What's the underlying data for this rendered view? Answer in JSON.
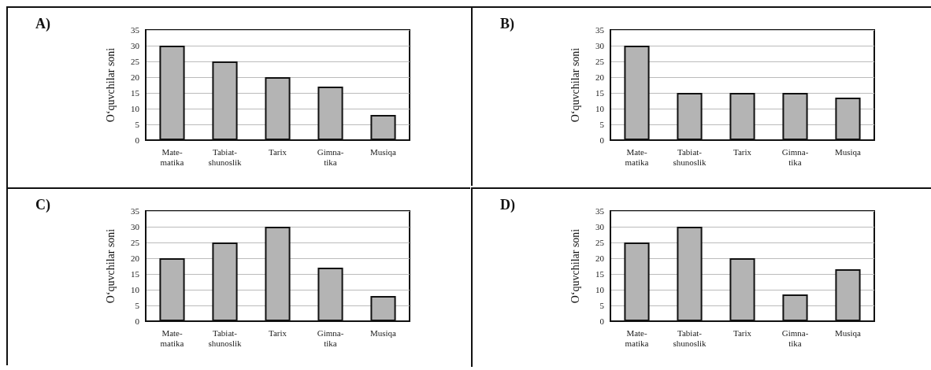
{
  "chart_data": [
    {
      "type": "bar",
      "title": "A)",
      "ylabel": "O‘quvchilar soni",
      "categories": [
        "Mate-\nmatika",
        "Tabiat-\nshunoslik",
        "Tarix",
        "Gimna-\ntika",
        "Musiqa"
      ],
      "values": [
        30,
        25,
        20,
        17,
        8
      ],
      "color": "#b4b4b4",
      "ylim": [
        0,
        35
      ],
      "yticks": [
        0,
        5,
        10,
        15,
        20,
        25,
        30,
        35
      ],
      "grid": "y"
    },
    {
      "type": "bar",
      "title": "B)",
      "ylabel": "O‘quvchilar soni",
      "categories": [
        "Mate-\nmatika",
        "Tabiat-\nshunoslik",
        "Tarix",
        "Gimna-\ntika",
        "Musiqa"
      ],
      "values": [
        30,
        15,
        15,
        15,
        13.5
      ],
      "color": "#b4b4b4",
      "ylim": [
        0,
        35
      ],
      "yticks": [
        0,
        5,
        10,
        15,
        20,
        25,
        30,
        35
      ],
      "grid": "y"
    },
    {
      "type": "bar",
      "title": "C)",
      "ylabel": "O‘quvchilar soni",
      "categories": [
        "Mate-\nmatika",
        "Tabiat-\nshunoslik",
        "Tarix",
        "Gimna-\ntika",
        "Musiqa"
      ],
      "values": [
        20,
        25,
        30,
        17,
        8
      ],
      "color": "#b4b4b4",
      "ylim": [
        0,
        35
      ],
      "yticks": [
        0,
        5,
        10,
        15,
        20,
        25,
        30,
        35
      ],
      "grid": "y"
    },
    {
      "type": "bar",
      "title": "D)",
      "ylabel": "O‘quvchilar soni",
      "categories": [
        "Mate-\nmatika",
        "Tabiat-\nshunoslik",
        "Tarix",
        "Gimna-\ntika",
        "Musiqa"
      ],
      "values": [
        25,
        30,
        20,
        8.5,
        16.5
      ],
      "color": "#b4b4b4",
      "ylim": [
        0,
        35
      ],
      "yticks": [
        0,
        5,
        10,
        15,
        20,
        25,
        30,
        35
      ],
      "grid": "y"
    }
  ]
}
